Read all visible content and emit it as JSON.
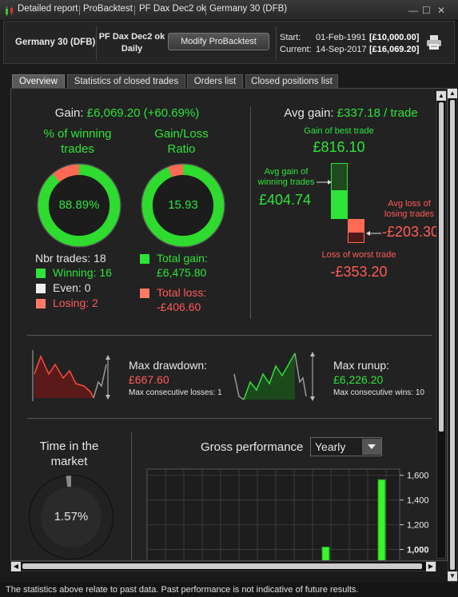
{
  "window": {
    "tabs": [
      "Detailed report",
      "ProBacktest",
      "PF Dax Dec2 ok",
      "Germany 30 (DFB)"
    ],
    "controls": {
      "minimize": "—",
      "restore": "☐",
      "close": "✕"
    }
  },
  "header": {
    "instrument": "Germany 30 (DFB)",
    "strategy_name": "PF Dax Dec2 ok",
    "timeframe": "Daily",
    "modify_button": "Modify ProBacktest",
    "start_label": "Start:",
    "start_date": "01-Feb-1991",
    "start_value": "[£10,000.00]",
    "current_label": "Current:",
    "current_date": "14-Sep-2017",
    "current_value": "[£16,069.20]"
  },
  "tabs": {
    "overview": "Overview",
    "stats": "Statistics of closed trades",
    "orders": "Orders list",
    "closed": "Closed positions list"
  },
  "overview": {
    "gain_label": "Gain:",
    "gain_value": "£6,069.20 (+60.69%)",
    "pct_winning_title_1": "% of winning",
    "pct_winning_title_2": "trades",
    "pct_winning_value": "88.89%",
    "pct_winning_fraction": 0.8889,
    "gl_ratio_title_1": "Gain/Loss",
    "gl_ratio_title_2": "Ratio",
    "gl_ratio_value": "15.93",
    "gl_gain_fraction": 0.9409,
    "nbr_trades": "Nbr trades: 18",
    "winning": "Winning: 16",
    "even": "Even: 0",
    "losing": "Losing: 2",
    "total_gain_label": "Total gain:",
    "total_gain_value": "£6,475.80",
    "total_loss_label": "Total loss:",
    "total_loss_value": "-£406.60",
    "avg_gain_label": "Avg gain:",
    "avg_gain_value": "£337.18 / trade",
    "best_trade_label": "Gain of best trade",
    "best_trade_value": "£816.10",
    "avg_gain_winning_label_1": "Avg gain of",
    "avg_gain_winning_label_2": "winning trades",
    "avg_gain_winning_value": "£404.74",
    "avg_loss_losing_label_1": "Avg loss of",
    "avg_loss_losing_label_2": "losing trades",
    "avg_loss_losing_value": "-£203.30",
    "worst_trade_label": "Loss of worst trade",
    "worst_trade_value": "-£353.20",
    "max_drawdown_label": "Max drawdown:",
    "max_drawdown_value": "£667.60",
    "max_consec_losses": "Max consecutive losses: 1",
    "max_runup_label": "Max runup:",
    "max_runup_value": "£6,226.20",
    "max_consec_wins": "Max consecutive wins: 10",
    "time_in_market_1": "Time in the",
    "time_in_market_2": "market",
    "time_in_market_value": "1.57%",
    "time_in_market_fraction": 0.0157,
    "gross_perf_label": "Gross performance",
    "gross_perf_period": "Yearly"
  },
  "footer": {
    "disclaimer": "The statistics above relate to past data. Past performance is not indicative of future results."
  },
  "colors": {
    "green": "#2ee33a",
    "red": "#ff5a5a",
    "background": "#222222"
  },
  "chart_data": {
    "type": "bar",
    "title": "Gross performance",
    "y_ticks": [
      1000,
      1200,
      1400,
      1600
    ],
    "ylim": [
      900,
      1650
    ],
    "values_visible": [
      1020,
      1565
    ]
  }
}
